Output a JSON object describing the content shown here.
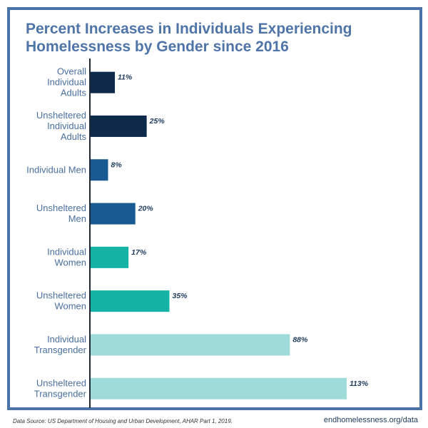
{
  "title": "Percent Increases in Individuals Experiencing Homelessness by Gender since 2016",
  "footer": {
    "source": "Data Source: US Department of Housing and Urban Development, AHAR Part 1, 2019.",
    "site": "endhomelessness.org/data"
  },
  "chart_data": {
    "type": "bar",
    "orientation": "horizontal",
    "title": "Percent Increases in Individuals Experiencing Homelessness by Gender since 2016",
    "categories": [
      [
        "Overall",
        "Individual",
        "Adults"
      ],
      [
        "Unsheltered",
        "Individual",
        "Adults"
      ],
      [
        "Individual Men"
      ],
      [
        "Unsheltered",
        "Men"
      ],
      [
        "Individual",
        "Women"
      ],
      [
        "Unsheltered",
        "Women"
      ],
      [
        "Individual",
        "Transgender"
      ],
      [
        "Unsheltered",
        "Transgender"
      ]
    ],
    "values": [
      11,
      25,
      8,
      20,
      17,
      35,
      88,
      113
    ],
    "value_labels": [
      "11%",
      "25%",
      "8%",
      "20%",
      "17%",
      "35%",
      "88%",
      "113%"
    ],
    "colors": [
      "#0d2a4a",
      "#0d2a4a",
      "#1a5a92",
      "#1a5a92",
      "#14b3a5",
      "#14b3a5",
      "#9edbd9",
      "#9edbd9"
    ],
    "xlim": [
      0,
      113
    ]
  }
}
